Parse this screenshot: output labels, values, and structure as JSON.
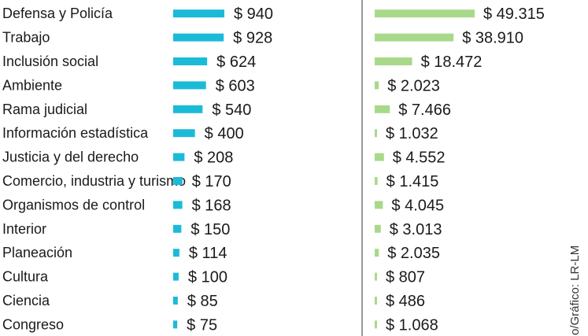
{
  "chart_data": {
    "type": "bar",
    "orientation": "horizontal",
    "categories": [
      "Defensa y Policía",
      "Trabajo",
      "Inclusión social",
      "Ambiente",
      "Rama judicial",
      "Información estadística",
      "Justicia y del derecho",
      "Comercio, industria y turismo",
      "Organismos de control",
      "Interior",
      "Planeación",
      "Cultura",
      "Ciencia",
      "Congreso"
    ],
    "series": [
      {
        "values": [
          940,
          928,
          624,
          603,
          540,
          400,
          208,
          170,
          168,
          150,
          114,
          100,
          85,
          75
        ],
        "labels": [
          "$ 940",
          "$ 928",
          "$ 624",
          "$ 603",
          "$ 540",
          "$ 400",
          "$ 208",
          "$ 170",
          "$ 168",
          "$ 150",
          "$ 114",
          "$ 100",
          "$ 85",
          "$ 75"
        ],
        "color": "#1bbbd8"
      },
      {
        "values": [
          49315,
          38910,
          18472,
          2023,
          7466,
          1032,
          4552,
          1415,
          4045,
          3013,
          2035,
          807,
          486,
          1068
        ],
        "labels": [
          "$ 49.315",
          "$ 38.910",
          "$ 18.472",
          "$ 2.023",
          "$ 7.466",
          "$ 1.032",
          "$ 4.552",
          "$ 1.415",
          "$ 4.045",
          "$ 3.013",
          "$ 2.035",
          "$ 807",
          "$ 486",
          "$ 1.068"
        ],
        "color": "#a8d98a"
      }
    ],
    "grid": false,
    "legend": "none"
  },
  "credit": "o/Gráfico: LR-LM",
  "divider_color": "#555555"
}
